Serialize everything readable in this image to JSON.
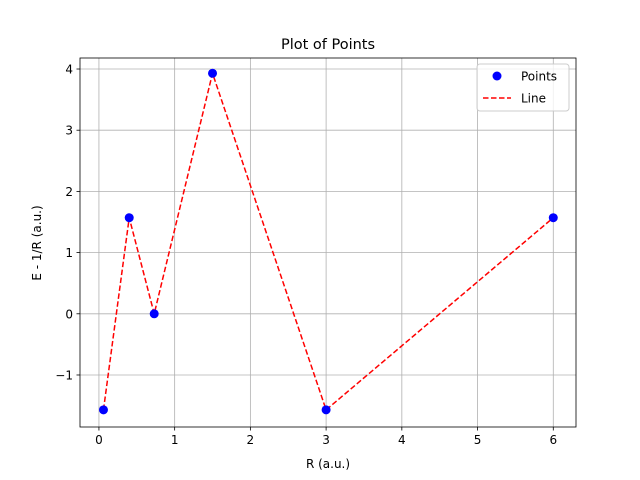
{
  "chart_data": {
    "type": "scatter",
    "title": "Plot of Points",
    "xlabel": "R (a.u.)",
    "ylabel": "E - 1/R (a.u.)",
    "xlim": [
      -0.25,
      6.3
    ],
    "ylim": [
      -1.85,
      4.18
    ],
    "xticks": [
      0,
      1,
      2,
      3,
      4,
      5,
      6
    ],
    "xtick_labels": [
      "0",
      "1",
      "2",
      "3",
      "4",
      "5",
      "6"
    ],
    "yticks": [
      -1,
      0,
      1,
      2,
      3,
      4
    ],
    "ytick_labels": [
      "−1",
      "0",
      "1",
      "2",
      "3",
      "4"
    ],
    "grid": true,
    "legend_position": "top-right",
    "points_series": {
      "name": "Points",
      "color": "#0000ff",
      "x": [
        0.06,
        0.4,
        0.73,
        1.5,
        3.0,
        6.0
      ],
      "y": [
        -1.57,
        1.57,
        0.0,
        3.93,
        -1.57,
        1.57
      ]
    },
    "line_series": {
      "name": "Line",
      "color": "#ff0000",
      "style": "dashed",
      "x": [
        0.06,
        0.4,
        0.73,
        1.5,
        3.0,
        6.0
      ],
      "y": [
        -1.57,
        1.57,
        0.0,
        3.93,
        -1.57,
        1.57
      ]
    }
  }
}
